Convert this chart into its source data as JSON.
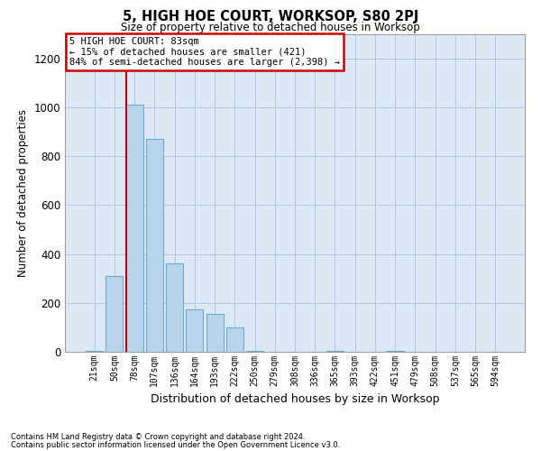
{
  "title": "5, HIGH HOE COURT, WORKSOP, S80 2PJ",
  "subtitle": "Size of property relative to detached houses in Worksop",
  "xlabel": "Distribution of detached houses by size in Worksop",
  "ylabel": "Number of detached properties",
  "bar_color": "#b8d4ea",
  "bar_edge_color": "#6aaad4",
  "highlight_line_color": "#cc0000",
  "background_color": "#ffffff",
  "plot_bg_color": "#dce9f5",
  "grid_color": "#b0c8e0",
  "categories": [
    "21sqm",
    "50sqm",
    "78sqm",
    "107sqm",
    "136sqm",
    "164sqm",
    "193sqm",
    "222sqm",
    "250sqm",
    "279sqm",
    "308sqm",
    "336sqm",
    "365sqm",
    "393sqm",
    "422sqm",
    "451sqm",
    "479sqm",
    "508sqm",
    "537sqm",
    "565sqm",
    "594sqm"
  ],
  "values": [
    5,
    310,
    1010,
    870,
    360,
    175,
    155,
    100,
    5,
    0,
    0,
    0,
    5,
    0,
    0,
    5,
    0,
    0,
    0,
    0,
    0
  ],
  "highlight_bar_index": 2,
  "annotation_text": "5 HIGH HOE COURT: 83sqm\n← 15% of detached houses are smaller (421)\n84% of semi-detached houses are larger (2,398) →",
  "annotation_box_color": "#ffffff",
  "annotation_box_edge_color": "#cc0000",
  "ylim": [
    0,
    1300
  ],
  "yticks": [
    0,
    200,
    400,
    600,
    800,
    1000,
    1200
  ],
  "footnote1": "Contains HM Land Registry data © Crown copyright and database right 2024.",
  "footnote2": "Contains public sector information licensed under the Open Government Licence v3.0."
}
